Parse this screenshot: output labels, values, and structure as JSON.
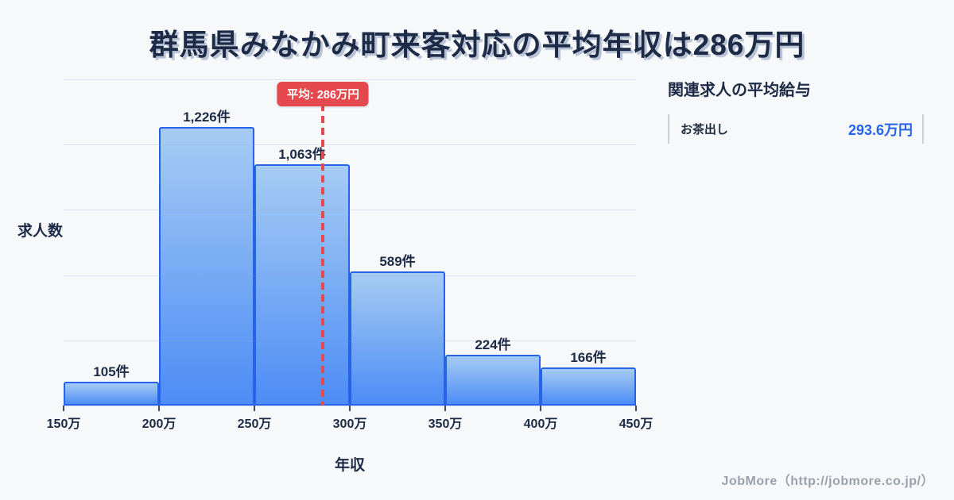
{
  "title": "群馬県みなかみ町来客対応の平均年収は286万円",
  "chart_data": {
    "type": "bar",
    "title": "群馬県みなかみ町来客対応の平均年収は286万円",
    "bins": [
      "150万",
      "200万",
      "250万",
      "300万",
      "350万",
      "400万",
      "450万"
    ],
    "values": [
      105,
      1226,
      1063,
      589,
      224,
      166
    ],
    "bar_labels": [
      "105件",
      "1,226件",
      "1,063件",
      "589件",
      "224件",
      "166件"
    ],
    "xlabel": "年収",
    "ylabel": "求人数",
    "x_range_man": [
      150,
      450
    ],
    "average_man": 286,
    "average_label": "平均: 286万円",
    "grid": true,
    "legend": "none"
  },
  "side_panel": {
    "heading": "関連求人の平均給与",
    "rows": [
      {
        "label": "お茶出し",
        "value": "293.6万円"
      }
    ]
  },
  "footer": {
    "credit": "JobMore（http://jobmore.co.jp/）"
  },
  "colors": {
    "bg": "#f7f8fa",
    "text_navy": "#1e2b47",
    "title_shadow": "#b6c1d3",
    "accent_red": "#e5494e",
    "bar_border": "#2563eb",
    "bar_top": "#a6ccf4",
    "bar_bottom": "#4d8cf5",
    "grid_line": "rgba(140,158,195,0.22)",
    "axis_line": "#dfe3ea",
    "tick_color": "#3c4a63",
    "value_blue": "#2563eb",
    "row_border": "#c9d0dd",
    "row_label": "#222c3f",
    "footer_gray": "#9aa1ad"
  }
}
